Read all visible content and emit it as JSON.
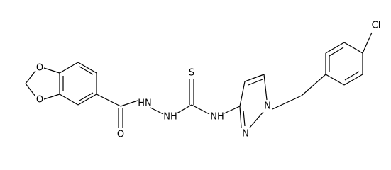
{
  "atoms": [
    {
      "label": "O"
    },
    {
      "label": "O"
    },
    {
      "label": "O"
    },
    {
      "label": "HN"
    },
    {
      "label": "NH"
    },
    {
      "label": "S"
    },
    {
      "label": "NH"
    },
    {
      "label": "N"
    },
    {
      "label": "N"
    },
    {
      "label": "Cl"
    }
  ]
}
